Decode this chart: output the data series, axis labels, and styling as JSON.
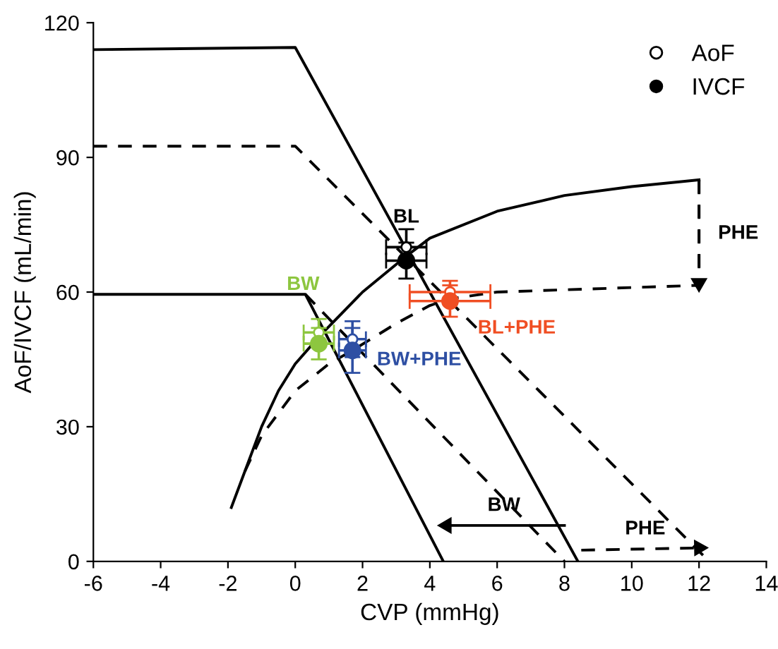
{
  "chart_data": {
    "type": "line",
    "xlabel": "CVP (mmHg)",
    "ylabel": "AoF/IVCF (mL/min)",
    "xlim": [
      -6,
      14
    ],
    "ylim": [
      0,
      120
    ],
    "xticks": [
      -6,
      -4,
      -2,
      0,
      2,
      4,
      6,
      8,
      10,
      12,
      14
    ],
    "yticks": [
      0,
      30,
      60,
      90,
      120
    ],
    "grid": false,
    "legend": "top right",
    "marker": "none",
    "series": [
      {
        "line_style": "solid",
        "color": "#000000",
        "x": [
          -6,
          0,
          8.4
        ],
        "values": [
          114,
          114.5,
          0
        ]
      },
      {
        "line_style": "dashed",
        "color": "#000000",
        "x": [
          -6,
          0,
          12.3
        ],
        "values": [
          92.5,
          92.5,
          0
        ]
      },
      {
        "line_style": "solid",
        "color": "#000000",
        "x": [
          -6,
          0.3,
          4.4
        ],
        "values": [
          59.5,
          59.5,
          0
        ]
      },
      {
        "line_style": "dashed",
        "color": "#000000",
        "x": [
          0.3,
          8
        ],
        "values": [
          59.5,
          0
        ]
      },
      {
        "line_style": "solid",
        "color": "#000000",
        "x": [
          -1.9,
          -1.4,
          -1,
          -0.5,
          0,
          0.7,
          2,
          3.3,
          4,
          6,
          8,
          10,
          12
        ],
        "values": [
          12,
          22,
          30,
          38,
          44,
          50,
          60,
          68,
          72,
          78,
          81.5,
          83.5,
          85
        ]
      },
      {
        "line_style": "dashed",
        "color": "#000000",
        "x": [
          -1.5,
          -1,
          0,
          1,
          1.7,
          3,
          4,
          4.6,
          6,
          8,
          10,
          12,
          12
        ],
        "values": [
          20,
          28,
          38,
          44,
          47,
          53,
          57,
          58.5,
          60,
          60.5,
          61,
          61.5,
          85
        ]
      },
      {
        "line_style": "dashed",
        "color": "#000000",
        "marker": "triangle",
        "x": [
          12,
          12
        ],
        "values": [
          85,
          62
        ]
      },
      {
        "line_style": "solid",
        "color": "#000000",
        "marker": "triangle",
        "x": [
          8,
          4.5
        ],
        "values": [
          8,
          8
        ]
      },
      {
        "line_style": "dashed",
        "color": "#000000",
        "marker": "triangle",
        "x": [
          8.5,
          12
        ],
        "values": [
          2.5,
          3
        ]
      },
      {
        "type": "scatter",
        "name": "AoF",
        "marker": "circle",
        "color": "#ffffff",
        "x": [
          3.3,
          0.7,
          1.7,
          4.6
        ],
        "values": [
          70,
          51,
          49.5,
          60
        ],
        "colors": [
          "#000000",
          "#8dc63f",
          "#2e4fa3",
          "#f04e23"
        ],
        "errors": [
          4,
          3,
          4,
          2.5
        ],
        "xerrors": [
          0.6,
          0.45,
          0.4,
          1.2
        ]
      },
      {
        "type": "scatter",
        "name": "IVCF",
        "marker": "circle",
        "x": [
          3.3,
          0.7,
          1.7,
          4.6
        ],
        "values": [
          67,
          48.5,
          47,
          58
        ],
        "colors": [
          "#000000",
          "#8dc63f",
          "#2e4fa3",
          "#f04e23"
        ],
        "errors": [
          4,
          3.5,
          5,
          3.5
        ],
        "xerrors": [
          0.6,
          0.45,
          0.4,
          1.2
        ]
      }
    ],
    "annotations": [
      {
        "text": "BL",
        "x": 3.3,
        "y": 67
      },
      {
        "text": "BW",
        "x": 0.7,
        "y": 48.5
      },
      {
        "text": "BW+PHE",
        "x": 1.7,
        "y": 47
      },
      {
        "text": "BL+PHE",
        "x": 4.6,
        "y": 58
      },
      {
        "text": "PHE",
        "x": 12,
        "y": 73
      },
      {
        "text": "BW",
        "x": 6.2,
        "y": 8
      },
      {
        "text": "PHE",
        "x": 10.4,
        "y": 2.8
      }
    ]
  }
}
